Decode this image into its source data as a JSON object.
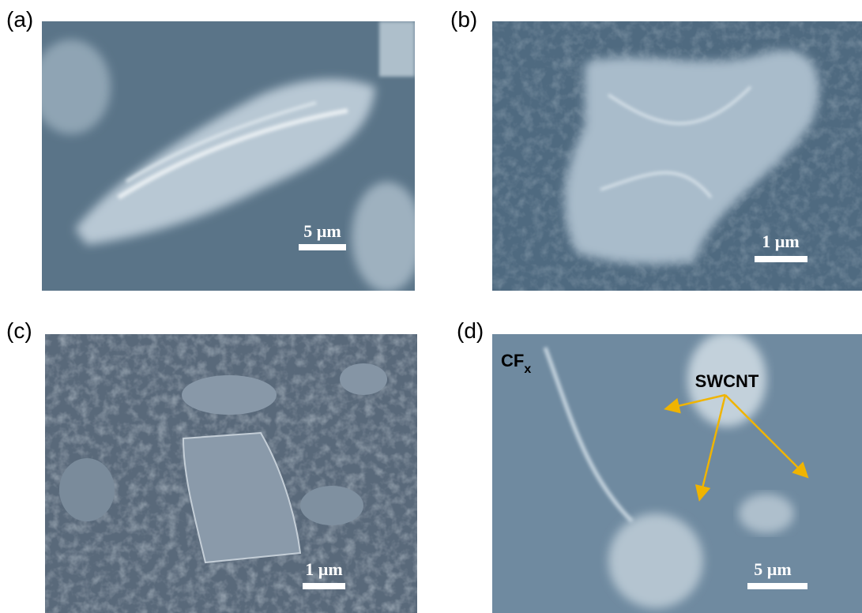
{
  "panels": [
    {
      "label": "(a)",
      "scale_bar": "5 µm"
    },
    {
      "label": "(b)",
      "scale_bar": "1 µm"
    },
    {
      "label": "(c)",
      "scale_bar": "1 µm"
    },
    {
      "label": "(d)",
      "scale_bar": "5 µm",
      "material": {
        "text": "CF",
        "subscript": "x"
      },
      "arrow_label": "SWCNT"
    }
  ]
}
